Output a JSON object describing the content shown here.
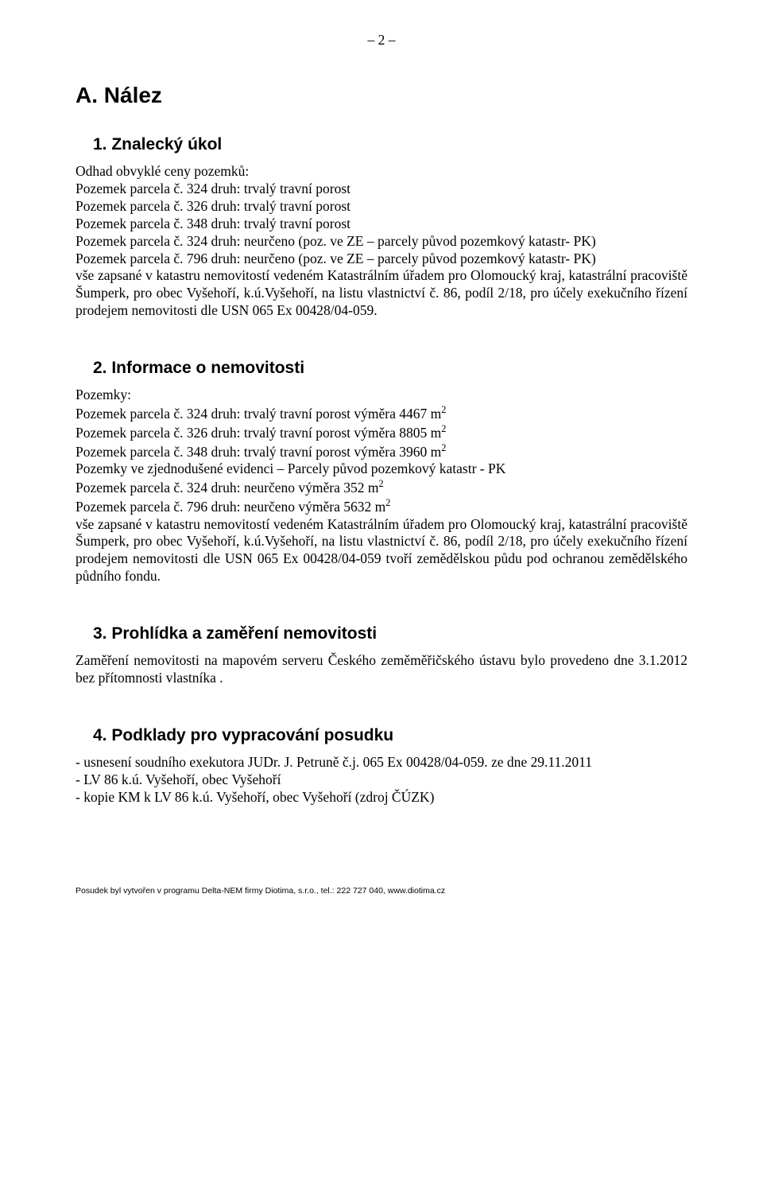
{
  "page_number": "– 2 –",
  "heading_main": "A. Nález",
  "section1": {
    "title": "1. Znalecký úkol",
    "intro": "Odhad obvyklé ceny  pozemků:",
    "lines": [
      "Pozemek parcela č. 324 druh: trvalý travní porost",
      "Pozemek parcela č. 326 druh: trvalý travní porost",
      "Pozemek parcela č. 348 druh: trvalý travní porost",
      "Pozemek parcela č. 324 druh: neurčeno (poz.  ve ZE – parcely původ pozemkový katastr- PK)",
      "Pozemek parcela č. 796 druh: neurčeno (poz.  ve ZE – parcely původ pozemkový katastr- PK)"
    ],
    "tail": "vše  zapsané  v katastru nemovitostí vedeném Katastrálním úřadem pro  Olomoucký  kraj, katastrální pracoviště Šumperk,  pro obec Vyšehoří,  k.ú.Vyšehoří,    na listu vlastnictví č. 86,  podíl 2/18, pro účely exekučního řízení prodejem nemovitosti dle  USN  065 Ex 00428/04-059."
  },
  "section2": {
    "title": "2. Informace o nemovitosti",
    "intro": "Pozemky:",
    "lines_pref": [
      "Pozemek parcela č. 324 druh: trvalý travní porost výměra 4467 m",
      "Pozemek parcela č. 326 druh: trvalý travní porost  výměra 8805 m",
      "Pozemek parcela č. 348 druh: trvalý travní porost výměra 3960 m"
    ],
    "pk_line": "Pozemky ve zjednodušené evidenci – Parcely původ pozemkový katastr - PK",
    "lines_pref2": [
      "Pozemek parcela č. 324 druh: neurčeno  výměra 352 m",
      "Pozemek parcela č. 796 druh: neurčeno  výměra 5632 m"
    ],
    "tail": "vše  zapsané  v katastru nemovitostí vedeném Katastrálním úřadem pro  Olomoucký  kraj, katastrální pracoviště Šumperk,  pro obec Vyšehoří,  k.ú.Vyšehoří, na listu vlastnictví č. 86,  podíl 2/18, pro účely exekučního řízení prodejem nemovitosti dle USN  065 Ex 00428/04-059 tvoří zemědělskou půdu pod ochranou zemědělského půdního fondu."
  },
  "section3": {
    "title": "3. Prohlídka a zaměření nemovitosti",
    "body": "Zaměření nemovitosti na mapovém serveru Českého zeměměřičského ústavu bylo provedeno dne 3.1.2012  bez přítomnosti vlastníka ."
  },
  "section4": {
    "title": "4. Podklady pro vypracování posudku",
    "lines": [
      "- usnesení soudního exekutora JUDr. J. Petruně  č.j.  065 Ex 00428/04-059.  ze dne 29.11.2011",
      "- LV 86 k.ú. Vyšehoří, obec Vyšehoří",
      "- kopie KM k LV 86 k.ú. Vyšehoří, obec Vyšehoří (zdroj ČÚZK)"
    ]
  },
  "footer": "Posudek byl vytvořen v programu Delta-NEM firmy Diotima, s.r.o., tel.: 222 727 040, www.diotima.cz",
  "sup2": "2"
}
